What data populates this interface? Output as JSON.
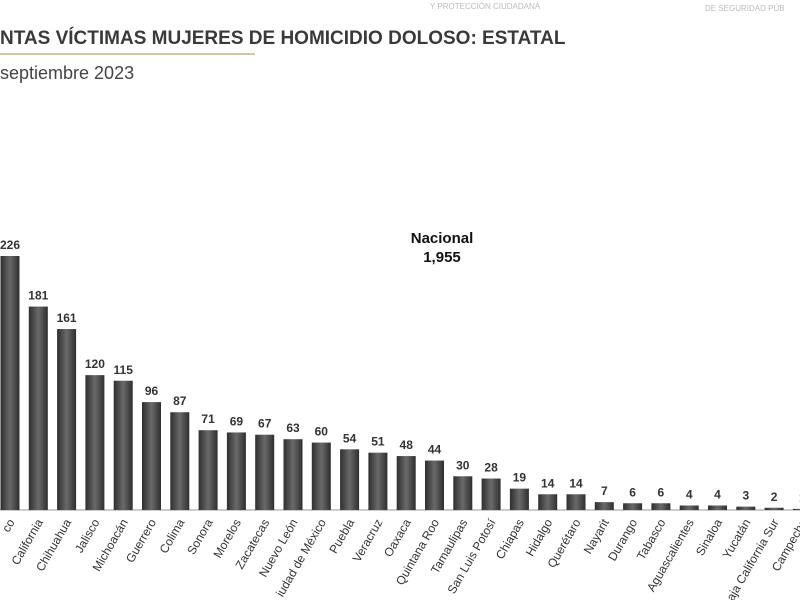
{
  "header": [
    "Y PROTECCIÓN CIUDADANA",
    "DE SEGURIDAD PÚB"
  ],
  "chart_data": {
    "type": "bar",
    "title": "NTAS VÍCTIMAS MUJERES DE HOMICIDIO DOLOSO: ESTATAL",
    "subtitle": "septiembre 2023",
    "annotation": {
      "label": "Nacional",
      "value": "1,955"
    },
    "color": "#4a4a4a",
    "categories": [
      "co",
      "California",
      "Chihuahua",
      "Jalisco",
      "Michoacán",
      "Guerrero",
      "Colima",
      "Sonora",
      "Morelos",
      "Zacatecas",
      "Nuevo León",
      "iudad de México",
      "Puebla",
      "Veracruz",
      "Oaxaca",
      "Quintana Roo",
      "Tamaulipas",
      "San Luis Potosí",
      "Chiapas",
      "Hidalgo",
      "Querétaro",
      "Nayarit",
      "Durango",
      "Tabasco",
      "Aguascalientes",
      "Sinaloa",
      "Yucatán",
      "aja California Sur",
      "Campeche"
    ],
    "values": [
      226,
      181,
      161,
      120,
      115,
      96,
      87,
      71,
      69,
      67,
      63,
      60,
      54,
      51,
      48,
      44,
      30,
      28,
      19,
      14,
      14,
      7,
      6,
      6,
      4,
      4,
      3,
      2,
      1
    ]
  }
}
